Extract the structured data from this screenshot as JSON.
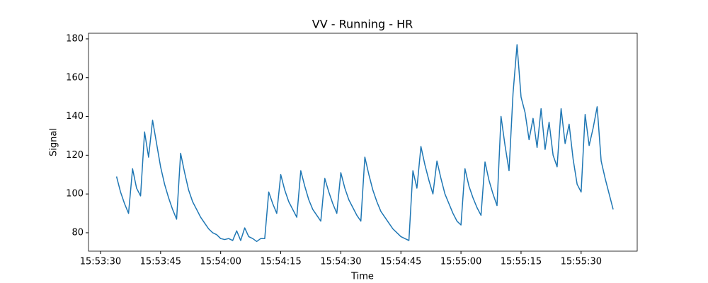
{
  "chart_data": {
    "type": "line",
    "title": "VV - Running - HR",
    "x_label": "Time",
    "y_label": "Signal",
    "x": [
      "15:53:34",
      "15:53:35",
      "15:53:36",
      "15:53:37",
      "15:53:38",
      "15:53:39",
      "15:53:40",
      "15:53:41",
      "15:53:42",
      "15:53:43",
      "15:53:44",
      "15:53:45",
      "15:53:46",
      "15:53:47",
      "15:53:48",
      "15:53:49",
      "15:53:50",
      "15:53:51",
      "15:53:52",
      "15:53:53",
      "15:53:54",
      "15:53:55",
      "15:53:56",
      "15:53:57",
      "15:53:58",
      "15:53:59",
      "15:54:00",
      "15:54:01",
      "15:54:02",
      "15:54:03",
      "15:54:04",
      "15:54:05",
      "15:54:06",
      "15:54:07",
      "15:54:08",
      "15:54:09",
      "15:54:10",
      "15:54:11",
      "15:54:12",
      "15:54:13",
      "15:54:14",
      "15:54:15",
      "15:54:16",
      "15:54:17",
      "15:54:18",
      "15:54:19",
      "15:54:20",
      "15:54:21",
      "15:54:22",
      "15:54:23",
      "15:54:24",
      "15:54:25",
      "15:54:26",
      "15:54:27",
      "15:54:28",
      "15:54:29",
      "15:54:30",
      "15:54:31",
      "15:54:32",
      "15:54:33",
      "15:54:34",
      "15:54:35",
      "15:54:36",
      "15:54:37",
      "15:54:38",
      "15:54:39",
      "15:54:40",
      "15:54:41",
      "15:54:42",
      "15:54:43",
      "15:54:44",
      "15:54:45",
      "15:54:46",
      "15:54:47",
      "15:54:48",
      "15:54:49",
      "15:54:50",
      "15:54:51",
      "15:54:52",
      "15:54:53",
      "15:54:54",
      "15:54:55",
      "15:54:56",
      "15:54:57",
      "15:54:58",
      "15:54:59",
      "15:55:00",
      "15:55:01",
      "15:55:02",
      "15:55:03",
      "15:55:04",
      "15:55:05",
      "15:55:06",
      "15:55:07",
      "15:55:08",
      "15:55:09",
      "15:55:10",
      "15:55:11",
      "15:55:12",
      "15:55:13",
      "15:55:14",
      "15:55:15",
      "15:55:16",
      "15:55:17",
      "15:55:18",
      "15:55:19",
      "15:55:20",
      "15:55:21",
      "15:55:22",
      "15:55:23",
      "15:55:24",
      "15:55:25",
      "15:55:26",
      "15:55:27",
      "15:55:28",
      "15:55:29",
      "15:55:30",
      "15:55:31",
      "15:55:32",
      "15:55:33",
      "15:55:34",
      "15:55:35",
      "15:55:36",
      "15:55:37",
      "15:55:38"
    ],
    "series": [
      {
        "color": "#1f77b4",
        "values": [
          109,
          101,
          95,
          90,
          113,
          103,
          99,
          132,
          119,
          138,
          126,
          114,
          105,
          98,
          92,
          87,
          121,
          111,
          102,
          96,
          92,
          88,
          85,
          82,
          80,
          79,
          77,
          76.5,
          77,
          76,
          81,
          76,
          82.5,
          78,
          77,
          75.5,
          77,
          77,
          101,
          95,
          90,
          110,
          102,
          96,
          92,
          88,
          112,
          104,
          97,
          92,
          89,
          86,
          108,
          101,
          95,
          90,
          111,
          103,
          97,
          93,
          89,
          86,
          119,
          110,
          102,
          96,
          91,
          88,
          85,
          82,
          80,
          78,
          77,
          76,
          112,
          103,
          124.5,
          115,
          107,
          100,
          117,
          108,
          100,
          95,
          90,
          86,
          84,
          113,
          104,
          98,
          93,
          89,
          116.5,
          107,
          100,
          94,
          140,
          125,
          112,
          152,
          177,
          150,
          142,
          128,
          139,
          124,
          144,
          123,
          137,
          120,
          114,
          144,
          126,
          136,
          118,
          105,
          101,
          141,
          125,
          134,
          145,
          117,
          108,
          100,
          92
        ]
      }
    ],
    "xlim": [
      "15:53:27",
      "15:55:44"
    ],
    "xticks": [
      "15:53:30",
      "15:53:45",
      "15:54:00",
      "15:54:15",
      "15:54:30",
      "15:54:45",
      "15:55:00",
      "15:55:15",
      "15:55:30"
    ],
    "ylim": [
      70.5,
      182.9
    ],
    "yticks": [
      80,
      100,
      120,
      140,
      160,
      180
    ]
  }
}
